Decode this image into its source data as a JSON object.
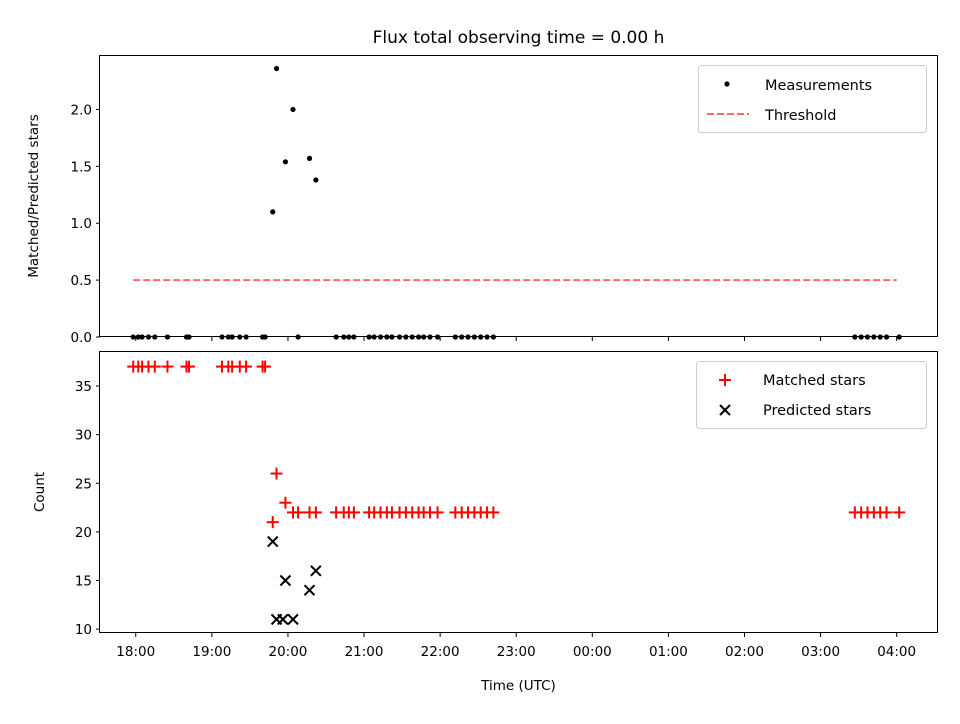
{
  "chart_data": [
    {
      "type": "scatter",
      "title": "Flux total observing time = 0.00 h",
      "xlabel": "",
      "ylabel": "Matched/Predicted stars",
      "xlim": [
        17.53,
        4.53
      ],
      "ylim": [
        0,
        2.47
      ],
      "yticks": [
        0.0,
        0.5,
        1.0,
        1.5,
        2.0
      ],
      "ytick_labels": [
        "0.0",
        "0.5",
        "1.0",
        "1.5",
        "2.0"
      ],
      "grid": false,
      "legend": "top-right",
      "series": [
        {
          "name": "Measurements",
          "kind": "scatter",
          "marker": "dot",
          "color": "#000000",
          "x": [
            "17:58",
            "18:02",
            "18:05",
            "18:10",
            "18:15",
            "18:25",
            "18:40",
            "18:42",
            "19:08",
            "19:13",
            "19:16",
            "19:22",
            "19:27",
            "19:40",
            "19:42",
            "19:48",
            "19:51",
            "19:58",
            "20:04",
            "20:08",
            "20:17",
            "20:22",
            "20:38",
            "20:44",
            "20:48",
            "20:52",
            "21:04",
            "21:08",
            "21:13",
            "21:18",
            "21:22",
            "21:28",
            "21:33",
            "21:38",
            "21:43",
            "21:47",
            "21:52",
            "21:58",
            "22:12",
            "22:17",
            "22:22",
            "22:27",
            "22:32",
            "22:37",
            "22:42",
            "03:27",
            "03:32",
            "03:37",
            "03:42",
            "03:47",
            "03:52",
            "04:02"
          ],
          "y": [
            0,
            0,
            0,
            0,
            0,
            0,
            0,
            0,
            0,
            0,
            0,
            0,
            0,
            0,
            0,
            1.1,
            2.36,
            1.54,
            2.0,
            0,
            1.57,
            1.38,
            0,
            0,
            0,
            0,
            0,
            0,
            0,
            0,
            0,
            0,
            0,
            0,
            0,
            0,
            0,
            0,
            0,
            0,
            0,
            0,
            0,
            0,
            0,
            0,
            0,
            0,
            0,
            0,
            0,
            0
          ]
        },
        {
          "name": "Threshold",
          "kind": "line",
          "style": "dashed",
          "color": "#ff6b6b",
          "x": [
            "17:58",
            "04:00"
          ],
          "y": [
            0.5,
            0.5
          ]
        }
      ]
    },
    {
      "type": "scatter",
      "title": "",
      "xlabel": "Time (UTC)",
      "ylabel": "Count",
      "xlim": [
        17.53,
        4.53
      ],
      "ylim": [
        9.6,
        38.5
      ],
      "yticks": [
        10,
        15,
        20,
        25,
        30,
        35
      ],
      "ytick_labels": [
        "10",
        "15",
        "20",
        "25",
        "30",
        "35"
      ],
      "xticks": [
        "18:00",
        "19:00",
        "20:00",
        "21:00",
        "22:00",
        "23:00",
        "00:00",
        "01:00",
        "02:00",
        "03:00",
        "04:00"
      ],
      "grid": false,
      "legend": "top-right",
      "series": [
        {
          "name": "Matched stars",
          "kind": "scatter",
          "marker": "plus",
          "color": "#ff0000",
          "x": [
            "17:58",
            "18:02",
            "18:05",
            "18:10",
            "18:15",
            "18:25",
            "18:40",
            "18:42",
            "19:08",
            "19:13",
            "19:16",
            "19:22",
            "19:27",
            "19:40",
            "19:42",
            "19:48",
            "19:51",
            "19:58",
            "20:04",
            "20:08",
            "20:17",
            "20:22",
            "20:38",
            "20:44",
            "20:48",
            "20:52",
            "21:04",
            "21:08",
            "21:13",
            "21:18",
            "21:22",
            "21:28",
            "21:33",
            "21:38",
            "21:43",
            "21:47",
            "21:52",
            "21:58",
            "22:12",
            "22:17",
            "22:22",
            "22:27",
            "22:32",
            "22:37",
            "22:42",
            "03:27",
            "03:32",
            "03:37",
            "03:42",
            "03:47",
            "03:52",
            "04:02"
          ],
          "y": [
            37,
            37,
            37,
            37,
            37,
            37,
            37,
            37,
            37,
            37,
            37,
            37,
            37,
            37,
            37,
            21,
            26,
            23,
            22,
            22,
            22,
            22,
            22,
            22,
            22,
            22,
            22,
            22,
            22,
            22,
            22,
            22,
            22,
            22,
            22,
            22,
            22,
            22,
            22,
            22,
            22,
            22,
            22,
            22,
            22,
            22,
            22,
            22,
            22,
            22,
            22,
            22
          ]
        },
        {
          "name": "Predicted stars",
          "kind": "scatter",
          "marker": "x",
          "color": "#000000",
          "x": [
            "19:48",
            "19:51",
            "19:56",
            "19:58",
            "20:04",
            "20:17",
            "20:22"
          ],
          "y": [
            19,
            11,
            11,
            15,
            11,
            14,
            16
          ]
        }
      ]
    }
  ]
}
